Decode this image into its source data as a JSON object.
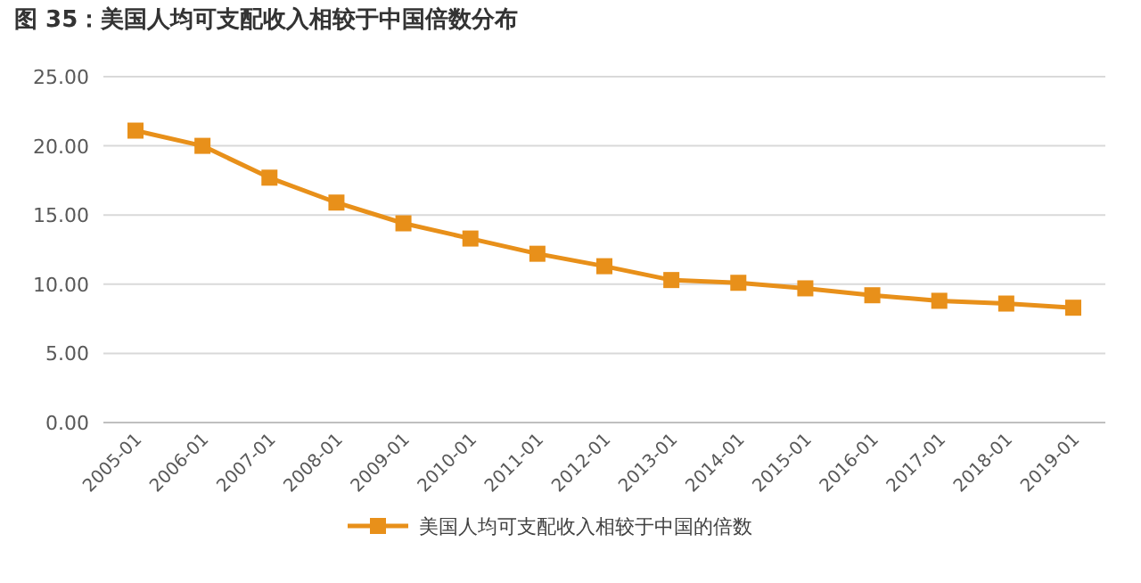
{
  "chart_data": {
    "type": "line",
    "title": "图 35：美国人均可支配收入相较于中国倍数分布",
    "categories": [
      "2005-01",
      "2006-01",
      "2007-01",
      "2008-01",
      "2009-01",
      "2010-01",
      "2011-01",
      "2012-01",
      "2013-01",
      "2014-01",
      "2015-01",
      "2016-01",
      "2017-01",
      "2018-01",
      "2019-01"
    ],
    "series": [
      {
        "name": "美国人均可支配收入相较于中国的倍数",
        "color": "#e8901a",
        "values": [
          21.1,
          20.0,
          17.7,
          15.9,
          14.4,
          13.3,
          12.2,
          11.3,
          10.3,
          10.1,
          9.7,
          9.2,
          8.8,
          8.6,
          8.3
        ]
      }
    ],
    "ylim": [
      0,
      25
    ],
    "yticks": [
      {
        "value": 0,
        "label": "0.00"
      },
      {
        "value": 5,
        "label": "5.00"
      },
      {
        "value": 10,
        "label": "10.00"
      },
      {
        "value": 15,
        "label": "15.00"
      },
      {
        "value": 20,
        "label": "20.00"
      },
      {
        "value": 25,
        "label": "25.00"
      }
    ],
    "grid": "y",
    "legend": "bottom",
    "marker": "square",
    "line_style": "solid"
  }
}
